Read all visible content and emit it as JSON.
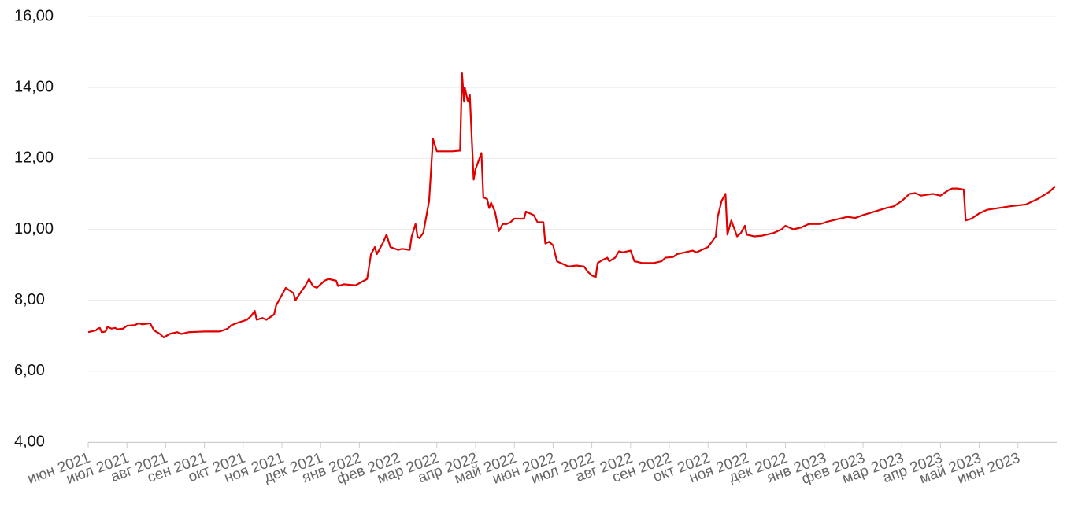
{
  "chart_data": {
    "type": "line",
    "color": "#e00000",
    "grid": true,
    "xlim": [
      0,
      25
    ],
    "ylim": [
      4,
      16
    ],
    "yticks": [
      {
        "value": 4,
        "label": "4,00"
      },
      {
        "value": 6,
        "label": "6,00"
      },
      {
        "value": 8,
        "label": "8,00"
      },
      {
        "value": 10,
        "label": "10,00"
      },
      {
        "value": 12,
        "label": "12,00"
      },
      {
        "value": 14,
        "label": "14,00"
      },
      {
        "value": 16,
        "label": "16,00"
      }
    ],
    "xticks": [
      {
        "value": 0,
        "label": "июн 2021"
      },
      {
        "value": 1,
        "label": "июл 2021"
      },
      {
        "value": 2,
        "label": "авг 2021"
      },
      {
        "value": 3,
        "label": "сен 2021"
      },
      {
        "value": 4,
        "label": "окт 2021"
      },
      {
        "value": 5,
        "label": "ноя 2021"
      },
      {
        "value": 6,
        "label": "дек 2021"
      },
      {
        "value": 7,
        "label": "янв 2022"
      },
      {
        "value": 8,
        "label": "фев 2022"
      },
      {
        "value": 9,
        "label": "мар 2022"
      },
      {
        "value": 10,
        "label": "апр 2022"
      },
      {
        "value": 11,
        "label": "май 2022"
      },
      {
        "value": 12,
        "label": "июн 2022"
      },
      {
        "value": 13,
        "label": "июл 2022"
      },
      {
        "value": 14,
        "label": "авг 2022"
      },
      {
        "value": 15,
        "label": "сен 2022"
      },
      {
        "value": 16,
        "label": "окт 2022"
      },
      {
        "value": 17,
        "label": "ноя 2022"
      },
      {
        "value": 18,
        "label": "дек 2022"
      },
      {
        "value": 19,
        "label": "янв 2023"
      },
      {
        "value": 20,
        "label": "фев 2023"
      },
      {
        "value": 21,
        "label": "мар 2023"
      },
      {
        "value": 22,
        "label": "апр 2023"
      },
      {
        "value": 23,
        "label": "май 2023"
      },
      {
        "value": 24,
        "label": "июн 2023"
      }
    ],
    "x": [
      0,
      0.2,
      0.25,
      0.3,
      0.35,
      0.45,
      0.5,
      0.6,
      0.7,
      0.75,
      0.9,
      1.0,
      1.2,
      1.3,
      1.4,
      1.6,
      1.7,
      1.85,
      1.95,
      2.1,
      2.3,
      2.4,
      2.6,
      3.0,
      3.4,
      3.6,
      3.7,
      3.9,
      4.1,
      4.2,
      4.3,
      4.35,
      4.5,
      4.6,
      4.8,
      4.85,
      4.95,
      5.0,
      5.1,
      5.3,
      5.35,
      5.5,
      5.6,
      5.7,
      5.8,
      5.9,
      6.1,
      6.2,
      6.4,
      6.45,
      6.6,
      6.9,
      7.2,
      7.3,
      7.4,
      7.45,
      7.6,
      7.7,
      7.8,
      8.0,
      8.1,
      8.3,
      8.35,
      8.45,
      8.5,
      8.55,
      8.65,
      8.8,
      8.9,
      9.0,
      9.4,
      9.6,
      9.65,
      9.7,
      9.72,
      9.8,
      9.85,
      9.95,
      10.0,
      10.15,
      10.2,
      10.3,
      10.35,
      10.4,
      10.5,
      10.6,
      10.7,
      10.8,
      10.9,
      11.0,
      11.25,
      11.3,
      11.5,
      11.6,
      11.75,
      11.8,
      11.9,
      12.0,
      12.1,
      12.4,
      12.6,
      12.8,
      12.9,
      13.0,
      13.1,
      13.15,
      13.3,
      13.4,
      13.45,
      13.6,
      13.7,
      13.8,
      14.0,
      14.1,
      14.3,
      14.6,
      14.8,
      14.9,
      15.1,
      15.2,
      15.4,
      15.6,
      15.7,
      15.9,
      16.0,
      16.2,
      16.25,
      16.35,
      16.45,
      16.5,
      16.6,
      16.7,
      16.75,
      16.85,
      16.95,
      17.0,
      17.2,
      17.4,
      17.7,
      17.9,
      18.0,
      18.2,
      18.4,
      18.6,
      18.9,
      19.1,
      19.4,
      19.6,
      19.8,
      20.0,
      20.3,
      20.6,
      20.8,
      21.0,
      21.2,
      21.35,
      21.5,
      21.8,
      22.0,
      22.2,
      22.3,
      22.45,
      22.6,
      22.65,
      22.8,
      23.0,
      23.2,
      23.5,
      23.8,
      24.2,
      24.5,
      24.8,
      24.95
    ],
    "values": [
      7.1,
      7.15,
      7.2,
      7.22,
      7.1,
      7.12,
      7.25,
      7.2,
      7.22,
      7.18,
      7.2,
      7.28,
      7.3,
      7.35,
      7.32,
      7.35,
      7.15,
      7.05,
      6.95,
      7.05,
      7.1,
      7.05,
      7.1,
      7.12,
      7.12,
      7.2,
      7.3,
      7.38,
      7.45,
      7.55,
      7.7,
      7.45,
      7.5,
      7.45,
      7.6,
      7.85,
      8.05,
      8.15,
      8.35,
      8.2,
      8.0,
      8.25,
      8.4,
      8.6,
      8.4,
      8.35,
      8.55,
      8.6,
      8.55,
      8.4,
      8.45,
      8.42,
      8.6,
      9.3,
      9.5,
      9.3,
      9.6,
      9.85,
      9.5,
      9.42,
      9.45,
      9.42,
      9.8,
      10.15,
      9.8,
      9.75,
      9.9,
      10.8,
      12.55,
      12.2,
      12.2,
      12.22,
      14.4,
      13.6,
      14.0,
      13.6,
      13.8,
      11.4,
      11.7,
      12.15,
      10.9,
      10.85,
      10.6,
      10.75,
      10.5,
      9.95,
      10.15,
      10.15,
      10.2,
      10.3,
      10.3,
      10.5,
      10.4,
      10.2,
      10.2,
      9.6,
      9.65,
      9.55,
      9.1,
      8.95,
      8.98,
      8.95,
      8.8,
      8.7,
      8.65,
      9.05,
      9.15,
      9.2,
      9.1,
      9.2,
      9.38,
      9.35,
      9.4,
      9.1,
      9.05,
      9.05,
      9.1,
      9.2,
      9.22,
      9.3,
      9.35,
      9.4,
      9.35,
      9.45,
      9.5,
      9.8,
      10.35,
      10.8,
      11.0,
      9.85,
      10.25,
      9.95,
      9.8,
      9.9,
      10.1,
      9.85,
      9.8,
      9.82,
      9.9,
      10.0,
      10.1,
      10.0,
      10.05,
      10.15,
      10.15,
      10.22,
      10.3,
      10.35,
      10.32,
      10.4,
      10.5,
      10.6,
      10.65,
      10.8,
      11.0,
      11.02,
      10.95,
      11.0,
      10.95,
      11.1,
      11.15,
      11.15,
      11.12,
      10.25,
      10.3,
      10.45,
      10.55,
      10.6,
      10.65,
      10.7,
      10.85,
      11.05,
      11.2
    ]
  }
}
